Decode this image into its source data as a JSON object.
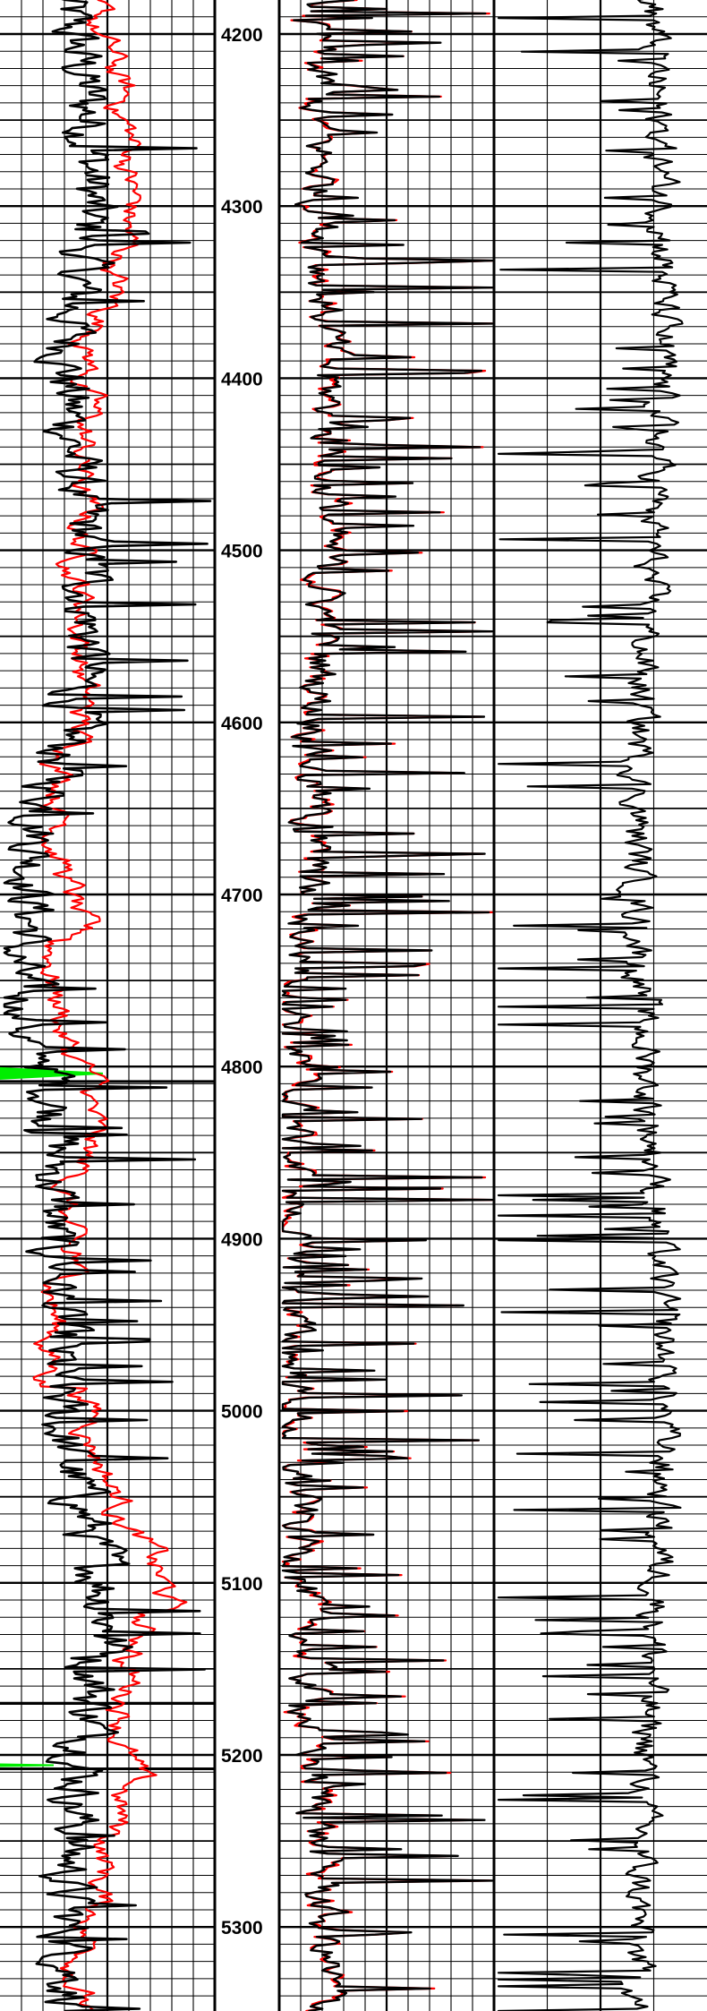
{
  "log": {
    "depth_axis": {
      "top_depth": 4185,
      "bottom_depth": 5350,
      "major_step": 100,
      "minor_step": 50,
      "labels": [
        "4200",
        "4300",
        "4400",
        "4500",
        "4600",
        "4700",
        "4800",
        "4900",
        "5000",
        "5100",
        "5200",
        "5300"
      ]
    },
    "colors": {
      "grid": "#000000",
      "curve_primary": "#000000",
      "curve_secondary": "#ff0000",
      "fill_highlight": "#00ee00"
    },
    "tracks": [
      {
        "id": "track-1",
        "vertical_divisions": 10,
        "curves": [
          "black",
          "red"
        ],
        "fills": [
          "green"
        ]
      },
      {
        "id": "depth-track"
      },
      {
        "id": "track-2",
        "vertical_divisions": 10,
        "curves": [
          "black",
          "red"
        ]
      },
      {
        "id": "track-3",
        "vertical_divisions": 4,
        "curves": [
          "black"
        ]
      }
    ],
    "highlight_depths": [
      4804,
      5206
    ],
    "marker_depths": [
      5170
    ]
  }
}
